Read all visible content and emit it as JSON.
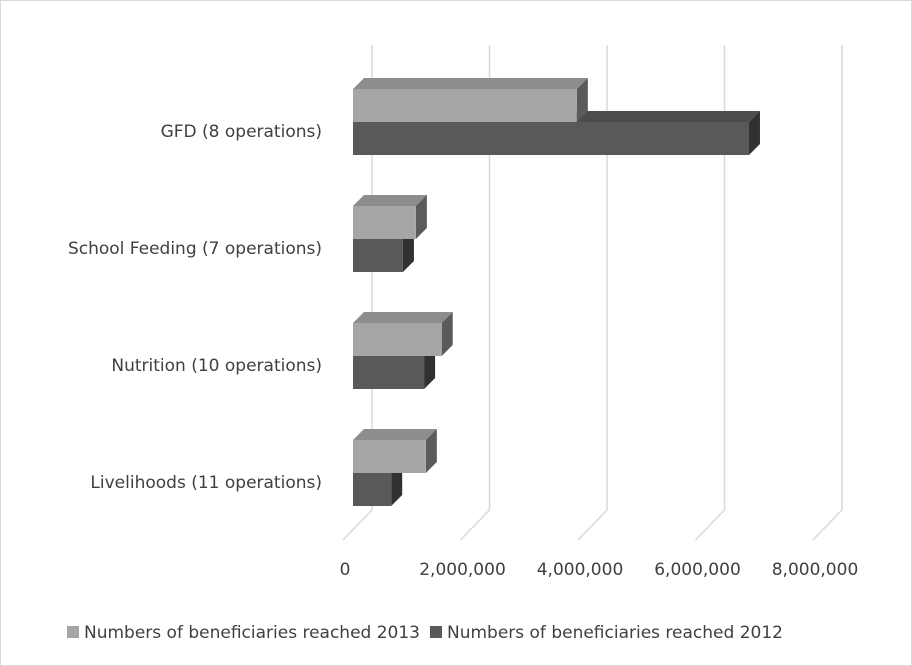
{
  "chart_data": {
    "type": "bar3d_horizontal",
    "categories": [
      "GFD (8 operations)",
      "School Feeding (7 operations)",
      "Nutrition (10 operations)",
      "Livelihoods (11 operations)"
    ],
    "series": [
      {
        "name": "Numbers of beneficiaries reached 2013",
        "color": "#a6a6a6",
        "values": [
          3810000,
          1070000,
          1510000,
          1240000
        ]
      },
      {
        "name": "Numbers of beneficiaries reached 2012",
        "color": "#595959",
        "values": [
          6740000,
          850000,
          1210000,
          650000
        ]
      }
    ],
    "xlim": [
      0,
      8000000
    ],
    "xticks": [
      0,
      {
        "value": 2000000,
        "label": "2,000,000"
      },
      {
        "value": 4000000,
        "label": "4,000,000"
      },
      {
        "value": 6000000,
        "label": "6,000,000"
      },
      {
        "value": 8000000,
        "label": "8,000,000"
      }
    ],
    "grid": true,
    "legend": "bottom"
  }
}
